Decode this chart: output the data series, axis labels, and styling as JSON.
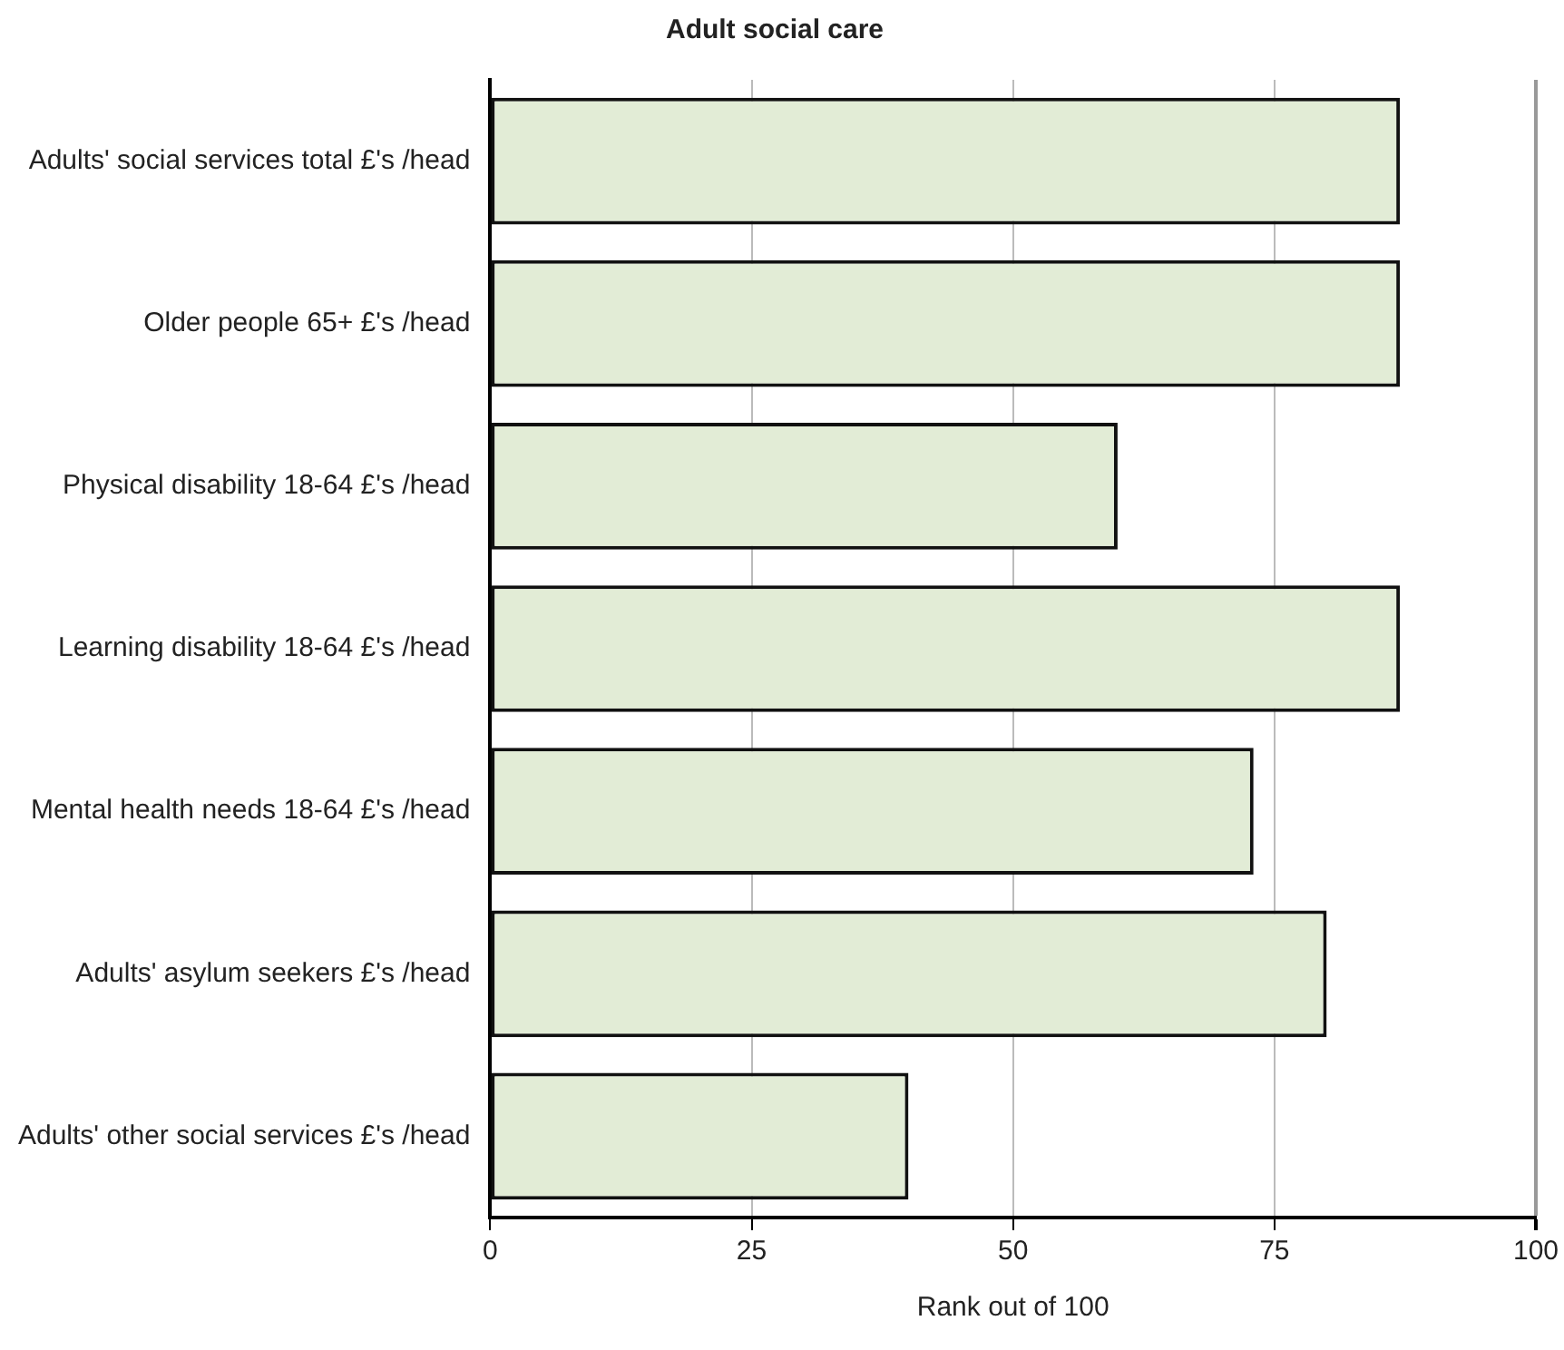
{
  "chart_data": {
    "type": "bar",
    "orientation": "horizontal",
    "title": "Adult social care",
    "xlabel": "Rank out of 100",
    "categories": [
      "Adults' social services total £'s /head",
      "Older people 65+ £'s /head",
      "Physical disability 18-64 £'s /head",
      "Learning disability 18-64 £'s /head",
      "Mental health needs 18-64 £'s /head",
      "Adults' asylum seekers £'s /head",
      "Adults' other social services £'s /head"
    ],
    "values": [
      87,
      87,
      60,
      87,
      73,
      80,
      40
    ],
    "color": "#e2ecd6",
    "xlim": [
      0,
      100
    ],
    "xticks": [
      0,
      25,
      50,
      75,
      100
    ],
    "grid": "x",
    "legend": false
  }
}
